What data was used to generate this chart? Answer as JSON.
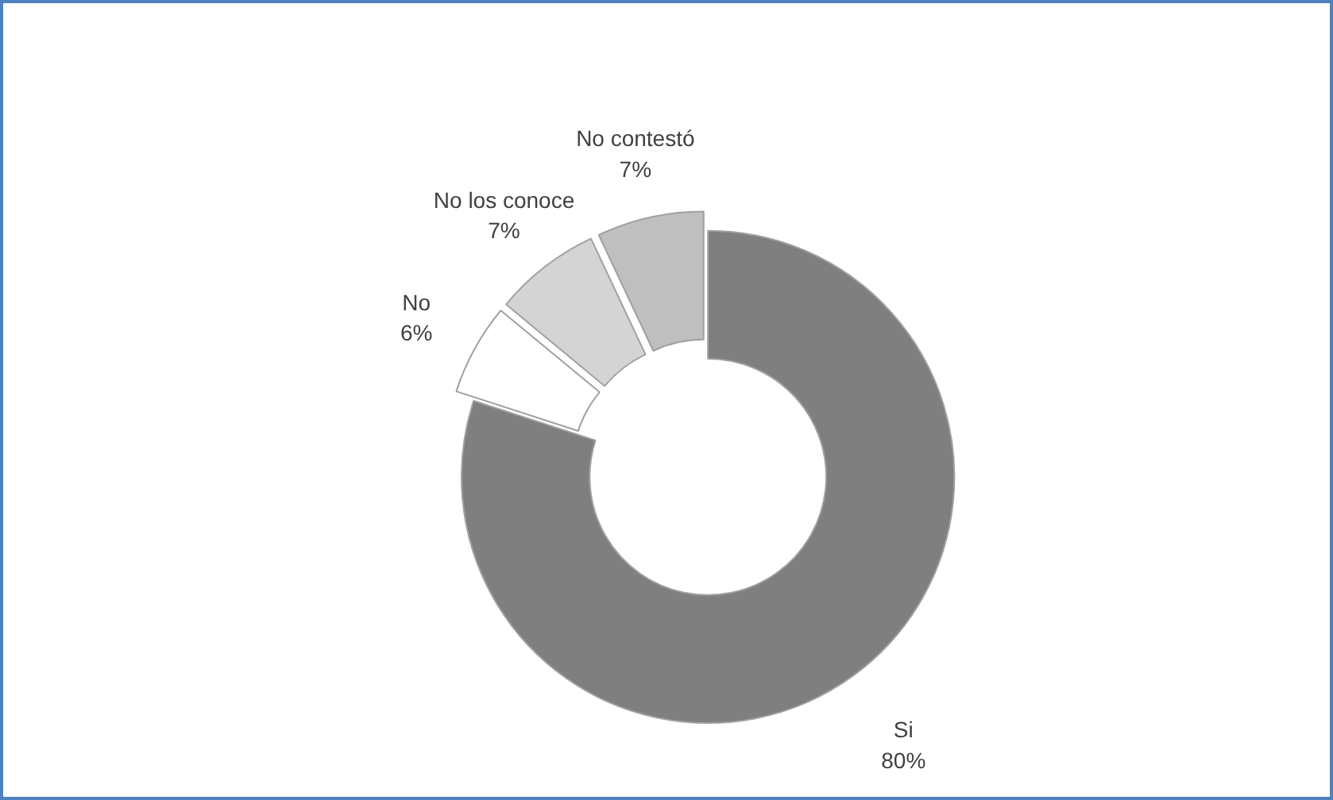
{
  "chart_data": {
    "type": "donut",
    "categories": [
      "Si",
      "No",
      "No los conoce",
      "No contestó"
    ],
    "values": [
      80,
      6,
      7,
      7
    ],
    "colors": [
      "#7f7f7f",
      "#ffffff",
      "#d4d4d4",
      "#bfbfbf"
    ],
    "value_labels": [
      "80%",
      "6%",
      "7%",
      "7%"
    ]
  }
}
